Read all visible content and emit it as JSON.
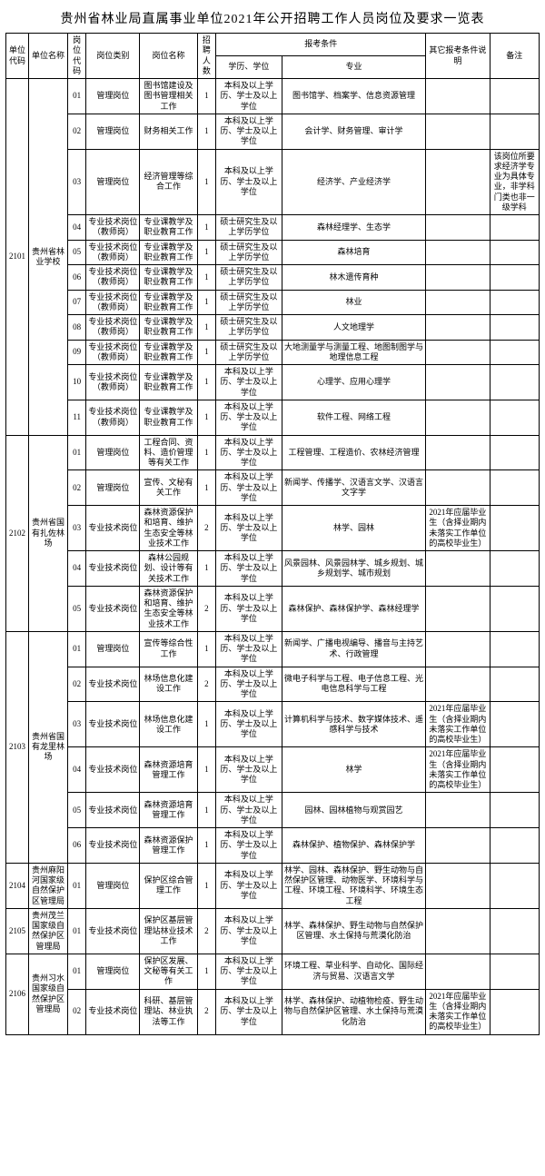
{
  "title": "贵州省林业局直属事业单位2021年公开招聘工作人员岗位及要求一览表",
  "headers": {
    "unit_code": "单位代码",
    "unit_name": "单位名称",
    "post_code": "岗位代码",
    "post_type": "岗位类别",
    "post_name": "岗位名称",
    "num": "招聘人数",
    "cond_group": "报考条件",
    "edu": "学历、学位",
    "major": "专业",
    "other": "其它报考条件说明",
    "note": "备注"
  },
  "units": [
    {
      "code": "2101",
      "name": "贵州省林业学校",
      "rows": [
        {
          "pc": "01",
          "pt": "管理岗位",
          "pn": "图书馆建设及图书管理相关工作",
          "n": "1",
          "edu": "本科及以上学历、学士及以上学位",
          "mj": "图书馆学、档案学、信息资源管理",
          "ot": "",
          "nt": ""
        },
        {
          "pc": "02",
          "pt": "管理岗位",
          "pn": "财务相关工作",
          "n": "1",
          "edu": "本科及以上学历、学士及以上学位",
          "mj": "会计学、财务管理、审计学",
          "ot": "",
          "nt": ""
        },
        {
          "pc": "03",
          "pt": "管理岗位",
          "pn": "经济管理等综合工作",
          "n": "1",
          "edu": "本科及以上学历、学士及以上学位",
          "mj": "经济学、产业经济学",
          "ot": "",
          "nt": "该岗位所要求经济学专业为具体专业，非学科门类也非一级学科"
        },
        {
          "pc": "04",
          "pt": "专业技术岗位（教师岗）",
          "pn": "专业课教学及职业教育工作",
          "n": "1",
          "edu": "硕士研究生及以上学历学位",
          "mj": "森林经理学、生态学",
          "ot": "",
          "nt": ""
        },
        {
          "pc": "05",
          "pt": "专业技术岗位（教师岗）",
          "pn": "专业课教学及职业教育工作",
          "n": "1",
          "edu": "硕士研究生及以上学历学位",
          "mj": "森林培育",
          "ot": "",
          "nt": ""
        },
        {
          "pc": "06",
          "pt": "专业技术岗位（教师岗）",
          "pn": "专业课教学及职业教育工作",
          "n": "1",
          "edu": "硕士研究生及以上学历学位",
          "mj": "林木遗传育种",
          "ot": "",
          "nt": ""
        },
        {
          "pc": "07",
          "pt": "专业技术岗位（教师岗）",
          "pn": "专业课教学及职业教育工作",
          "n": "1",
          "edu": "硕士研究生及以上学历学位",
          "mj": "林业",
          "ot": "",
          "nt": ""
        },
        {
          "pc": "08",
          "pt": "专业技术岗位（教师岗）",
          "pn": "专业课教学及职业教育工作",
          "n": "1",
          "edu": "硕士研究生及以上学历学位",
          "mj": "人文地理学",
          "ot": "",
          "nt": ""
        },
        {
          "pc": "09",
          "pt": "专业技术岗位（教师岗）",
          "pn": "专业课教学及职业教育工作",
          "n": "1",
          "edu": "硕士研究生及以上学历学位",
          "mj": "大地测量学与测量工程、地图制图学与地理信息工程",
          "ot": "",
          "nt": ""
        },
        {
          "pc": "10",
          "pt": "专业技术岗位（教师岗）",
          "pn": "专业课教学及职业教育工作",
          "n": "1",
          "edu": "本科及以上学历、学士及以上学位",
          "mj": "心理学、应用心理学",
          "ot": "",
          "nt": ""
        },
        {
          "pc": "11",
          "pt": "专业技术岗位（教师岗）",
          "pn": "专业课教学及职业教育工作",
          "n": "1",
          "edu": "本科及以上学历、学士及以上学位",
          "mj": "软件工程、网络工程",
          "ot": "",
          "nt": ""
        }
      ]
    },
    {
      "code": "2102",
      "name": "贵州省国有扎佐林场",
      "rows": [
        {
          "pc": "01",
          "pt": "管理岗位",
          "pn": "工程合同、资料、造价管理等有关工作",
          "n": "1",
          "edu": "本科及以上学历、学士及以上学位",
          "mj": "工程管理、工程造价、农林经济管理",
          "ot": "",
          "nt": ""
        },
        {
          "pc": "02",
          "pt": "管理岗位",
          "pn": "宣传、文秘有关工作",
          "n": "1",
          "edu": "本科及以上学历、学士及以上学位",
          "mj": "新闻学、传播学、汉语言文学、汉语言文字学",
          "ot": "",
          "nt": ""
        },
        {
          "pc": "03",
          "pt": "专业技术岗位",
          "pn": "森林资源保护和培育、维护生态安全等林业技术工作",
          "n": "2",
          "edu": "本科及以上学历、学士及以上学位",
          "mj": "林学、园林",
          "ot": "2021年应届毕业生（含择业期内未落实工作单位的高校毕业生）",
          "nt": ""
        },
        {
          "pc": "04",
          "pt": "专业技术岗位",
          "pn": "森林公园规划、设计等有关技术工作",
          "n": "1",
          "edu": "本科及以上学历、学士及以上学位",
          "mj": "风景园林、风景园林学、城乡规划、城乡规划学、城市规划",
          "ot": "",
          "nt": ""
        },
        {
          "pc": "05",
          "pt": "专业技术岗位",
          "pn": "森林资源保护和培育、维护生态安全等林业技术工作",
          "n": "2",
          "edu": "本科及以上学历、学士及以上学位",
          "mj": "森林保护、森林保护学、森林经理学",
          "ot": "",
          "nt": ""
        }
      ]
    },
    {
      "code": "2103",
      "name": "贵州省国有龙里林场",
      "rows": [
        {
          "pc": "01",
          "pt": "管理岗位",
          "pn": "宣传等综合性工作",
          "n": "1",
          "edu": "本科及以上学历、学士及以上学位",
          "mj": "新闻学、广播电视编导、播音与主持艺术、行政管理",
          "ot": "",
          "nt": ""
        },
        {
          "pc": "02",
          "pt": "专业技术岗位",
          "pn": "林场信息化建设工作",
          "n": "2",
          "edu": "本科及以上学历、学士及以上学位",
          "mj": "微电子科学与工程、电子信息工程、光电信息科学与工程",
          "ot": "",
          "nt": ""
        },
        {
          "pc": "03",
          "pt": "专业技术岗位",
          "pn": "林场信息化建设工作",
          "n": "1",
          "edu": "本科及以上学历、学士及以上学位",
          "mj": "计算机科学与技术、数字媒体技术、遥感科学与技术",
          "ot": "2021年应届毕业生（含择业期内未落实工作单位的高校毕业生）",
          "nt": ""
        },
        {
          "pc": "04",
          "pt": "专业技术岗位",
          "pn": "森林资源培育管理工作",
          "n": "1",
          "edu": "本科及以上学历、学士及以上学位",
          "mj": "林学",
          "ot": "2021年应届毕业生（含择业期内未落实工作单位的高校毕业生）",
          "nt": ""
        },
        {
          "pc": "05",
          "pt": "专业技术岗位",
          "pn": "森林资源培育管理工作",
          "n": "1",
          "edu": "本科及以上学历、学士及以上学位",
          "mj": "园林、园林植物与观赏园艺",
          "ot": "",
          "nt": ""
        },
        {
          "pc": "06",
          "pt": "专业技术岗位",
          "pn": "森林资源保护管理工作",
          "n": "1",
          "edu": "本科及以上学历、学士及以上学位",
          "mj": "森林保护、植物保护、森林保护学",
          "ot": "",
          "nt": ""
        }
      ]
    },
    {
      "code": "2104",
      "name": "贵州麻阳河国家级自然保护区管理局",
      "rows": [
        {
          "pc": "01",
          "pt": "管理岗位",
          "pn": "保护区综合管理工作",
          "n": "1",
          "edu": "本科及以上学历、学士及以上学位",
          "mj": "林学、园林、森林保护、野生动物与自然保护区管理、动物医学、环境科学与工程、环境工程、环境科学、环境生态工程",
          "ot": "",
          "nt": ""
        }
      ]
    },
    {
      "code": "2105",
      "name": "贵州茂兰国家级自然保护区管理局",
      "rows": [
        {
          "pc": "01",
          "pt": "专业技术岗位",
          "pn": "保护区基层管理站林业技术工作",
          "n": "2",
          "edu": "本科及以上学历、学士及以上学位",
          "mj": "林学、森林保护、野生动物与自然保护区管理、水土保持与荒漠化防治",
          "ot": "",
          "nt": ""
        }
      ]
    },
    {
      "code": "2106",
      "name": "贵州习水国家级自然保护区管理局",
      "rows": [
        {
          "pc": "01",
          "pt": "管理岗位",
          "pn": "保护区发展、文秘等有关工作",
          "n": "1",
          "edu": "本科及以上学历、学士及以上学位",
          "mj": "环境工程、草业科学、自动化、国际经济与贸易、汉语言文学",
          "ot": "",
          "nt": ""
        },
        {
          "pc": "02",
          "pt": "专业技术岗位",
          "pn": "科研、基层管理站、林业执法等工作",
          "n": "2",
          "edu": "本科及以上学历、学士及以上学位",
          "mj": "林学、森林保护、动植物检疫、野生动物与自然保护区管理、水土保持与荒漠化防治",
          "ot": "2021年应届毕业生（含择业期内未落实工作单位的高校毕业生）",
          "nt": ""
        }
      ]
    }
  ]
}
